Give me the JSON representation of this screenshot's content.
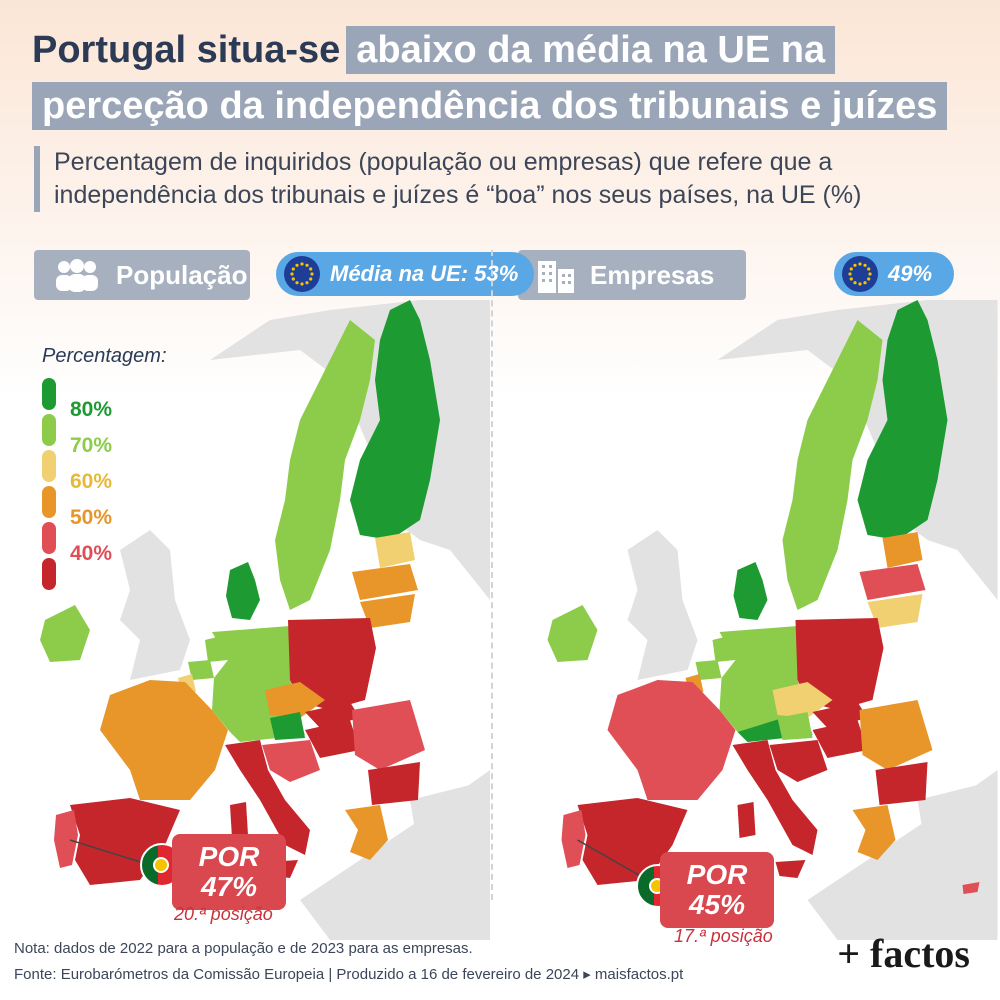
{
  "title": {
    "part1": "Portugal situa-se",
    "part2": "abaixo da média na UE na",
    "part3": "perceção da independência dos tribunais e juízes"
  },
  "subtitle": "Percentagem de inquiridos (população ou empresas) que refere que a independência dos tribunais e juízes é “boa” nos seus países, na UE (%)",
  "panels": {
    "population": {
      "label": "População",
      "eu_average_label": "Média na UE: 53%",
      "icon": "people-icon"
    },
    "companies": {
      "label": "Empresas",
      "eu_average_label": "49%",
      "icon": "buildings-icon"
    }
  },
  "legend": {
    "title": "Percentagem:",
    "items": [
      {
        "label": "80%",
        "color": "#1e9a32"
      },
      {
        "label": "70%",
        "color": "#8ccc4a"
      },
      {
        "label": "60%",
        "color": "#f0d070"
      },
      {
        "label": "50%",
        "color": "#e8952a"
      },
      {
        "label": "40%",
        "color": "#e04e56"
      },
      {
        "label": "",
        "color": "#c4262b"
      }
    ],
    "text_colors": [
      "#1e9a32",
      "#8ccc4a",
      "#e8b83a",
      "#e8952a",
      "#e04e56",
      "#c4262b"
    ]
  },
  "portugal": {
    "population": {
      "line1": "POR",
      "line2": "47%",
      "rank": "20.ª posição"
    },
    "companies": {
      "line1": "POR",
      "line2": "45%",
      "rank": "17.ª posição"
    }
  },
  "footer": {
    "note": "Nota: dados de 2022 para a população e de 2023 para as empresas.",
    "source": "Fonte: Eurobarómetros da Comissão Europeia | Produzido a 16 de fevereiro de 2024 ▸ maisfactos.pt",
    "logo": "+ factos"
  }
}
